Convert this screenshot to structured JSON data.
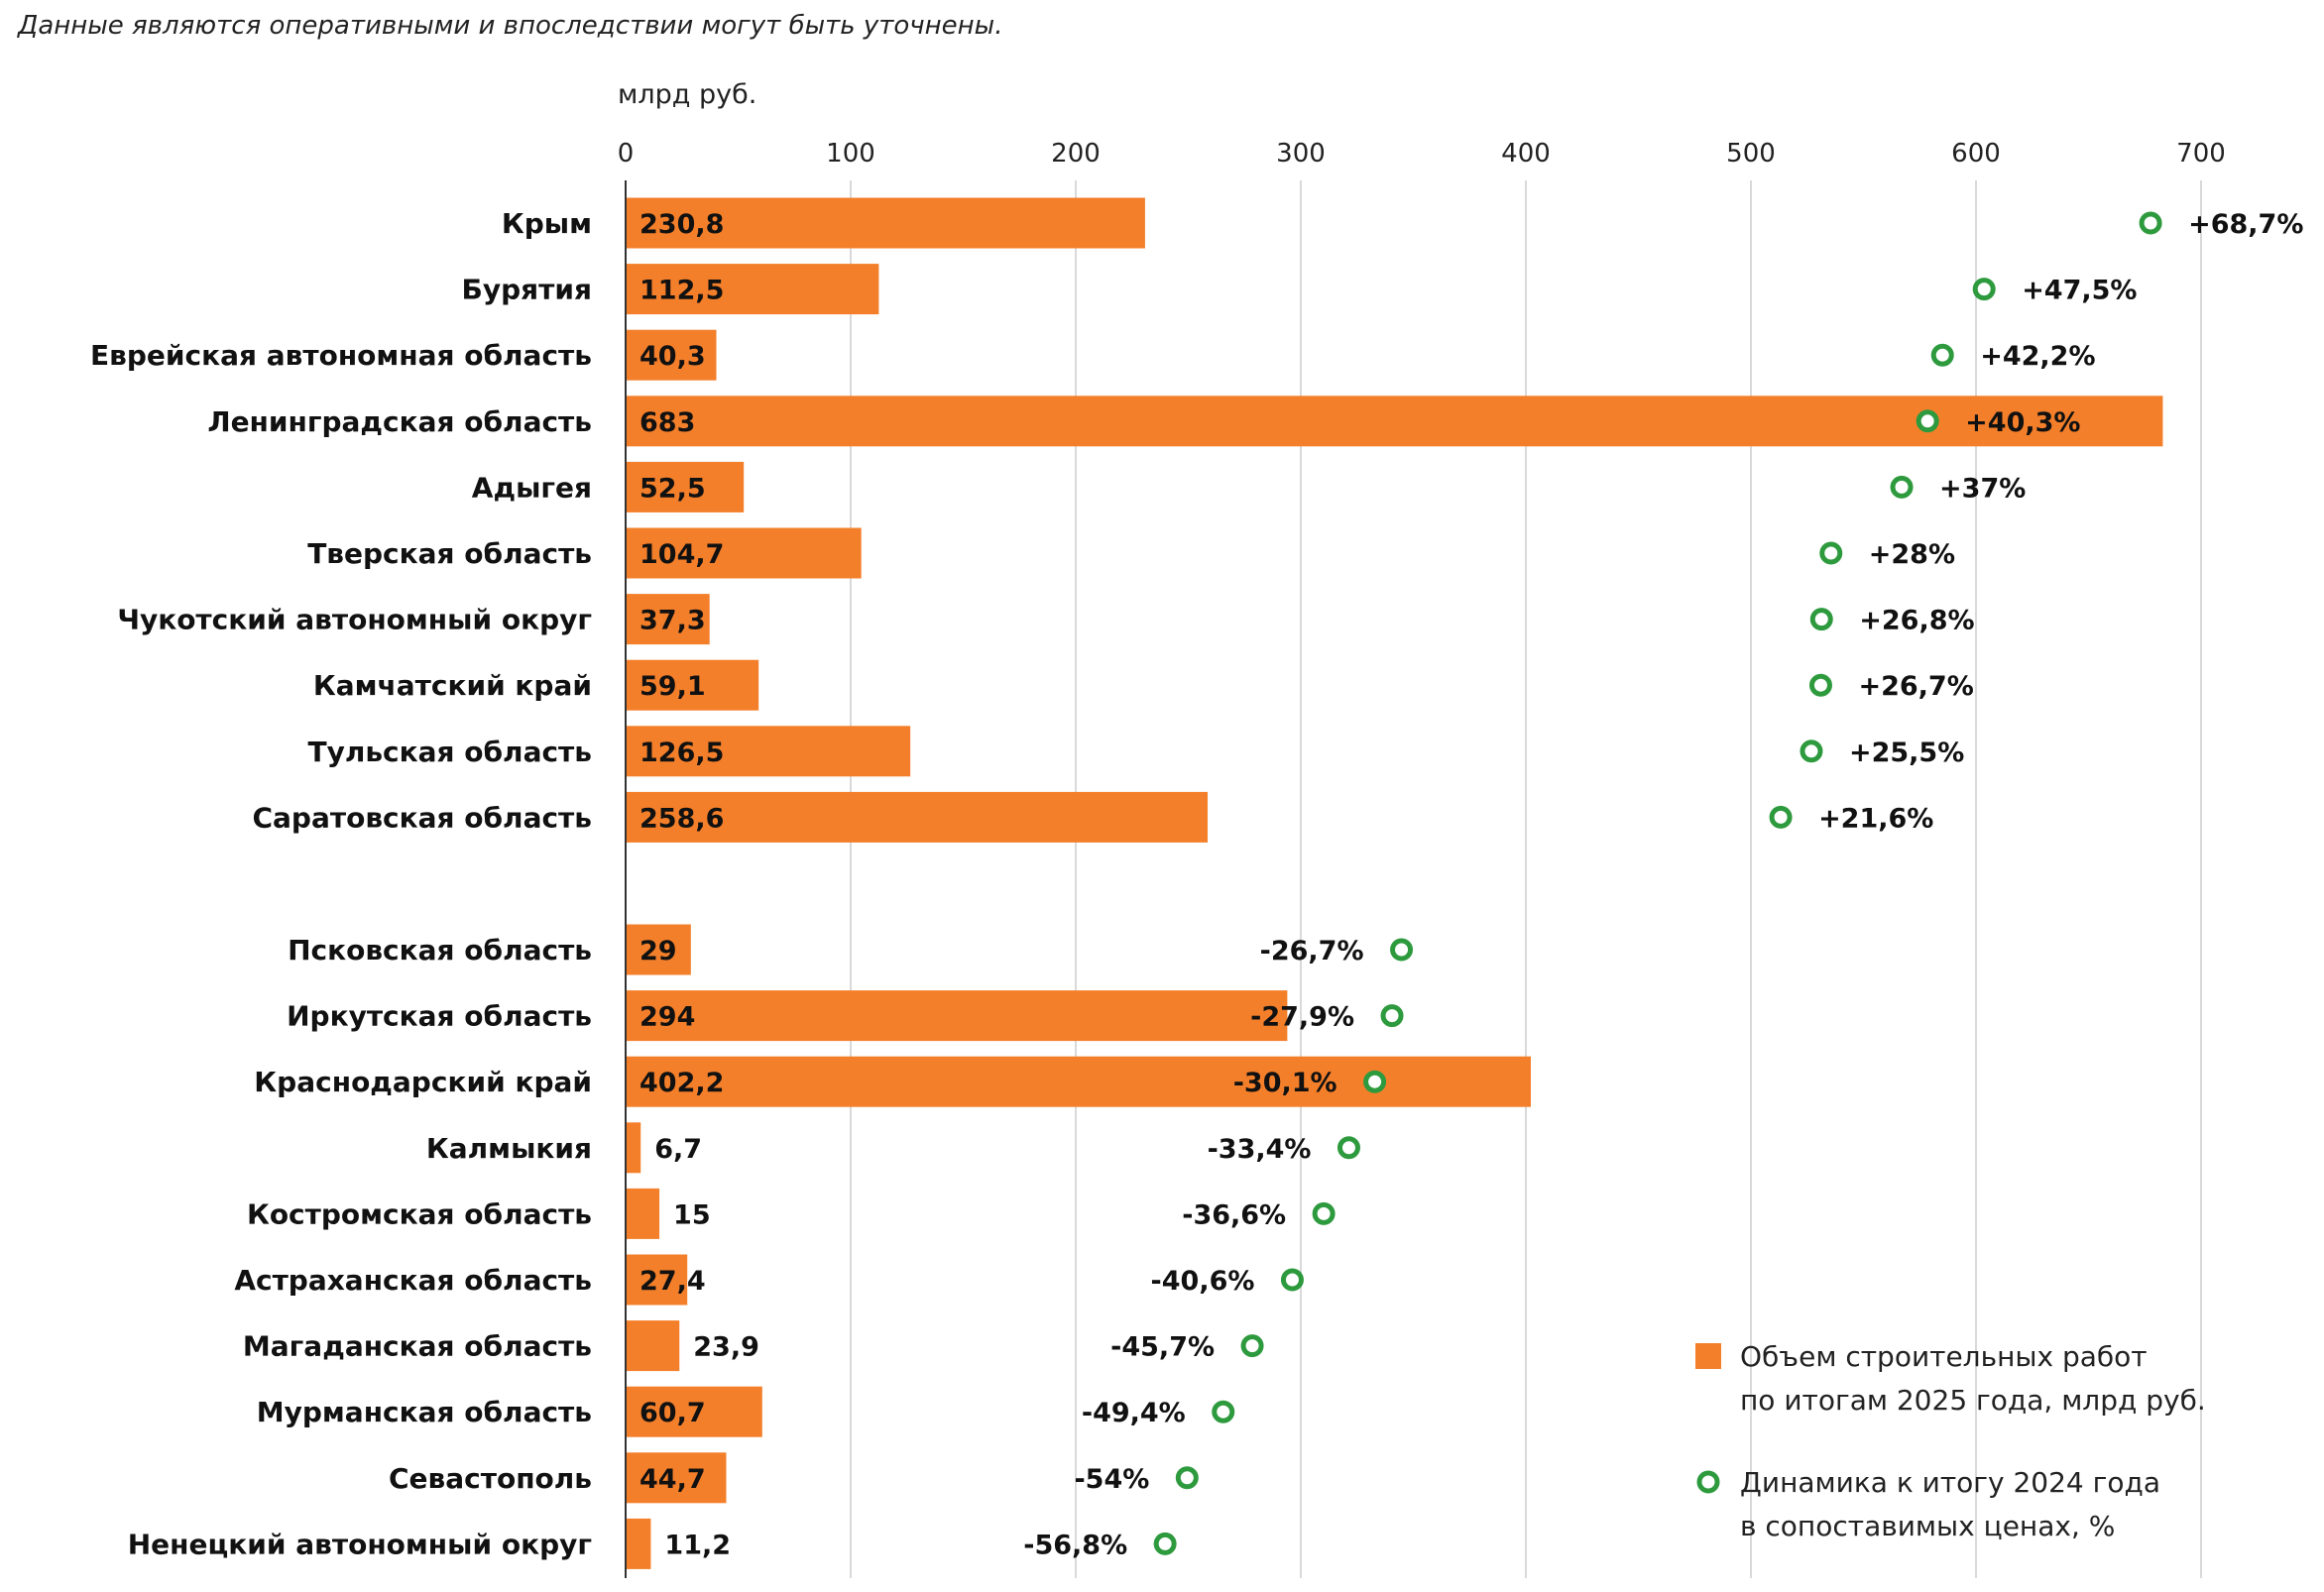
{
  "note": "Данные являются оперативными и впоследствии могут быть уточнены.",
  "chart_data": {
    "type": "bar",
    "orientation": "horizontal",
    "xlabel": "млрд руб.",
    "xlim": [
      0,
      700
    ],
    "xticks": [
      "0",
      "100",
      "200",
      "300",
      "400",
      "500",
      "600",
      "700"
    ],
    "grid": true,
    "legend_position": "bottom-right",
    "colors": {
      "bar": "#f47f2a",
      "marker": "#2e9a3e"
    },
    "groups": [
      {
        "categories": [
          "Крым",
          "Бурятия",
          "Еврейская автономная область",
          "Ленинградская область",
          "Адыгея",
          "Тверская область",
          "Чукотский автономный округ",
          "Камчатский край",
          "Тульская область",
          "Саратовская область"
        ],
        "values": [
          230.8,
          112.5,
          40.3,
          683,
          52.5,
          104.7,
          37.3,
          59.1,
          126.5,
          258.6
        ],
        "value_labels": [
          "230,8",
          "112,5",
          "40,3",
          "683",
          "52,5",
          "104,7",
          "37,3",
          "59,1",
          "126,5",
          "258,6"
        ],
        "change": [
          68.7,
          47.5,
          42.2,
          40.3,
          37,
          28,
          26.8,
          26.7,
          25.5,
          21.6
        ],
        "change_labels": [
          "+68,7%",
          "+47,5%",
          "+42,2%",
          "+40,3%",
          "+37%",
          "+28%",
          "+26,8%",
          "+26,7%",
          "+25,5%",
          "+21,6%"
        ]
      },
      {
        "categories": [
          "Псковская область",
          "Иркутская область",
          "Краснодарский край",
          "Калмыкия",
          "Костромская область",
          "Астраханская область",
          "Магаданская область",
          "Мурманская область",
          "Севастополь",
          "Ненецкий автономный округ"
        ],
        "values": [
          29,
          294,
          402.2,
          6.7,
          15,
          27.4,
          23.9,
          60.7,
          44.7,
          11.2
        ],
        "value_labels": [
          "29",
          "294",
          "402,2",
          "6,7",
          "15",
          "27,4",
          "23,9",
          "60,7",
          "44,7",
          "11,2"
        ],
        "change": [
          -26.7,
          -27.9,
          -30.1,
          -33.4,
          -36.6,
          -40.6,
          -45.7,
          -49.4,
          -54,
          -56.8
        ],
        "change_labels": [
          "-26,7%",
          "-27,9%",
          "-30,1%",
          "-33,4%",
          "-36,6%",
          "-40,6%",
          "-45,7%",
          "-49,4%",
          "-54%",
          "-56,8%"
        ]
      }
    ],
    "series": [
      {
        "name": "Объем строительных работ по итогам 2025 года, млрд руб.",
        "kind": "bar"
      },
      {
        "name": "Динамика к итогу 2024 года в сопоставимых ценах, %",
        "kind": "marker"
      }
    ]
  },
  "legend": {
    "bar_line1": "Объем строительных работ",
    "bar_line2": "по итогам 2025 года, млрд руб.",
    "marker_line1": "Динамика к итогу 2024 года",
    "marker_line2": "в сопоставимых ценах, %"
  }
}
